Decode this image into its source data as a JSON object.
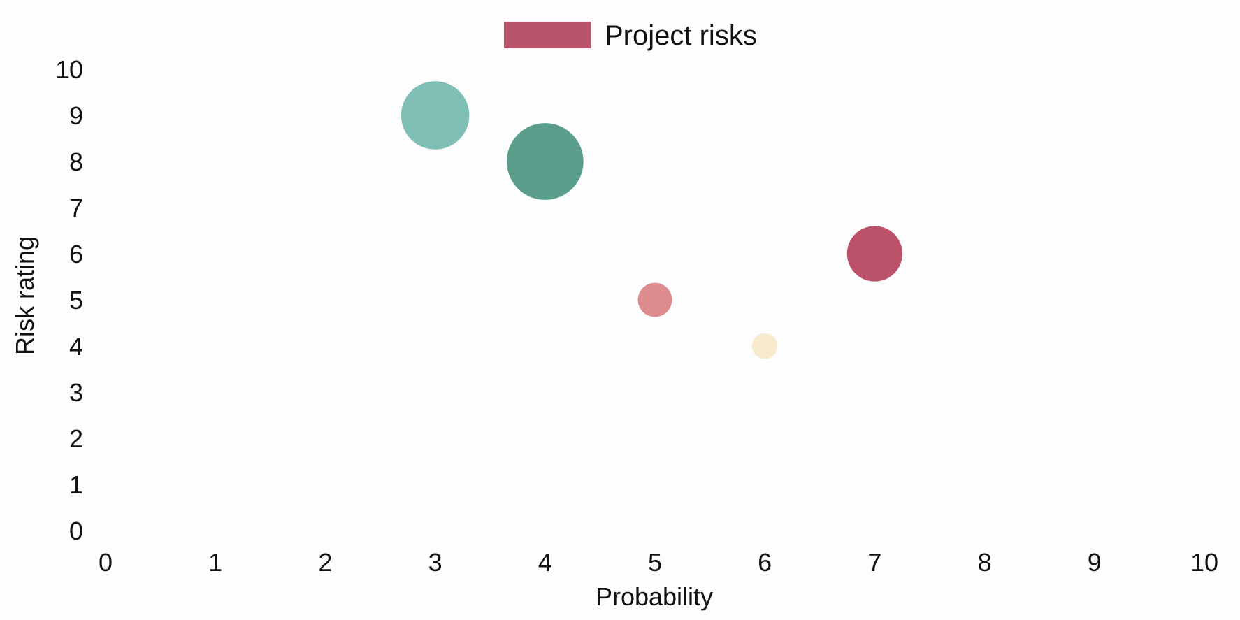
{
  "chart_data": {
    "type": "scatter",
    "title": "",
    "xlabel": "Probability",
    "ylabel": "Risk rating",
    "xlim": [
      0,
      10
    ],
    "ylim": [
      0,
      10
    ],
    "x_ticks": [
      0,
      1,
      2,
      3,
      4,
      5,
      6,
      7,
      8,
      9,
      10
    ],
    "y_ticks": [
      0,
      1,
      2,
      3,
      4,
      5,
      6,
      7,
      8,
      9,
      10
    ],
    "grid": false,
    "legend": {
      "position": "top-center",
      "entries": [
        {
          "label": "Project risks",
          "color": "#b8546a"
        }
      ]
    },
    "series": [
      {
        "name": "Project risks",
        "points": [
          {
            "x": 3,
            "y": 9,
            "size": 8,
            "color": "#80bfb6"
          },
          {
            "x": 4,
            "y": 8,
            "size": 9,
            "color": "#5a9e8b"
          },
          {
            "x": 5,
            "y": 5,
            "size": 4,
            "color": "#dc8c8c"
          },
          {
            "x": 6,
            "y": 4,
            "size": 3,
            "color": "#f8eacd"
          },
          {
            "x": 7,
            "y": 6,
            "size": 6.5,
            "color": "#bb5069"
          }
        ]
      }
    ]
  }
}
